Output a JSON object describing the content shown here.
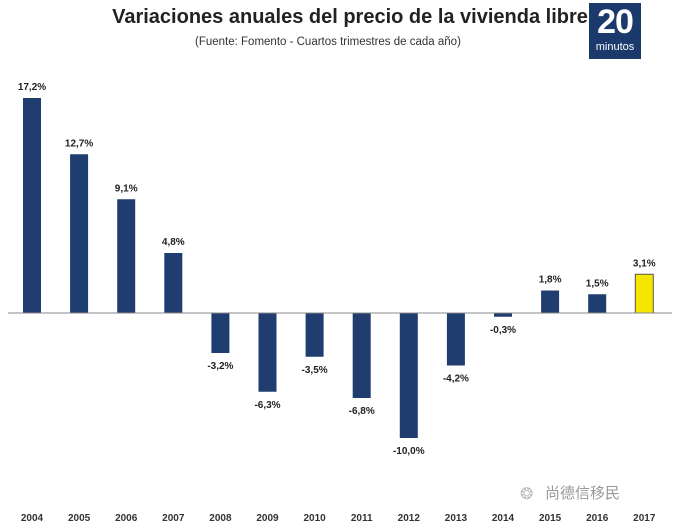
{
  "chart_data": {
    "type": "bar",
    "title": "Variaciones anuales del precio de la vivienda libre",
    "subtitle": "(Fuente: Fomento - Cuartos trimestres de cada año)",
    "categories": [
      "2004",
      "2005",
      "2006",
      "2007",
      "2008",
      "2009",
      "2010",
      "2011",
      "2012",
      "2013",
      "2014",
      "2015",
      "2016",
      "2017"
    ],
    "values": [
      17.2,
      12.7,
      9.1,
      4.8,
      -3.2,
      -6.3,
      -3.5,
      -6.8,
      -10.0,
      -4.2,
      -0.3,
      1.8,
      1.5,
      3.1
    ],
    "labels": [
      "17,2%",
      "12,7%",
      "9,1%",
      "4,8%",
      "-3,2%",
      "-6,3%",
      "-3,5%",
      "-6,8%",
      "-10,0%",
      "-4,2%",
      "-0,3%",
      "1,8%",
      "1,5%",
      "3,1%"
    ],
    "highlight_index": 13,
    "colors": {
      "bar": "#1f3d6e",
      "highlight": "#f5e600",
      "highlight_border": "#555555"
    },
    "xlabel": "",
    "ylabel": "",
    "ylim": [
      -12,
      18
    ],
    "grid": false
  },
  "logo": {
    "number": "20",
    "word": "minutos"
  },
  "watermark": "尚德信移民"
}
